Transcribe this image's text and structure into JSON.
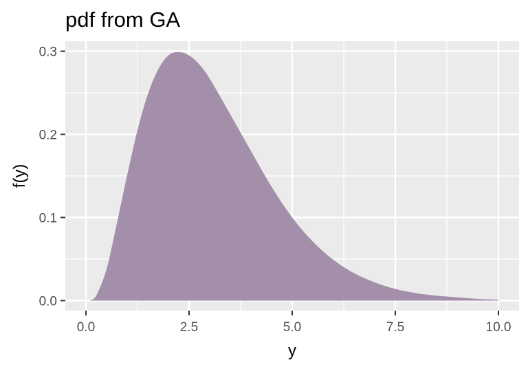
{
  "chart_data": {
    "type": "area",
    "title": "pdf from  GA",
    "xlabel": "y",
    "ylabel": "f(y)",
    "xlim": [
      -0.5,
      10.5
    ],
    "ylim": [
      -0.012,
      0.312
    ],
    "x_ticks": [
      0,
      2.5,
      5,
      7.5,
      10
    ],
    "x_tick_labels": [
      "0.0",
      "2.5",
      "5.0",
      "7.5",
      "10.0"
    ],
    "y_ticks": [
      0,
      0.1,
      0.2,
      0.3
    ],
    "y_tick_labels": [
      "0.0",
      "0.1",
      "0.2",
      "0.3"
    ],
    "grid": true,
    "series": [
      {
        "x": [
          0.1,
          0.25,
          0.5,
          0.75,
          1.0,
          1.25,
          1.5,
          1.75,
          2.0,
          2.25,
          2.5,
          2.75,
          3.0,
          3.5,
          4.0,
          4.5,
          5.0,
          5.5,
          6.0,
          6.5,
          7.0,
          7.5,
          8.0,
          8.5,
          9.0,
          9.5,
          10.0
        ],
        "y": [
          0.0003,
          0.006,
          0.038,
          0.093,
          0.151,
          0.205,
          0.248,
          0.278,
          0.295,
          0.299,
          0.295,
          0.284,
          0.267,
          0.224,
          0.18,
          0.137,
          0.1,
          0.071,
          0.049,
          0.033,
          0.022,
          0.014,
          0.009,
          0.006,
          0.004,
          0.002,
          0.001
        ]
      }
    ],
    "colors": {
      "fill": "#9f8aa5",
      "panel": "#ebebeb",
      "grid_major": "#ffffff",
      "tick": "#333333"
    }
  }
}
